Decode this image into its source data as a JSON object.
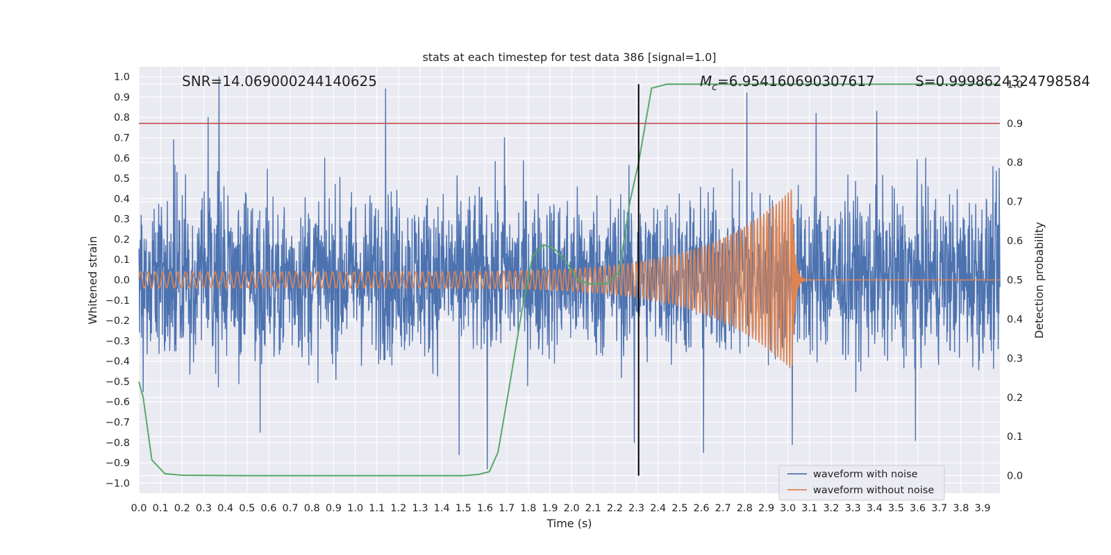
{
  "chart_data": {
    "type": "line",
    "title": "stats at each timestep for test data 386 [signal=1.0]",
    "xlabel": "Time (s)",
    "ylabel": "Whitened strain",
    "ylabel_right": "Detection probability",
    "xlim": [
      0.0,
      3.98
    ],
    "ylim": [
      -1.05,
      1.05
    ],
    "ylim_right": [
      -0.045,
      1.045
    ],
    "x_ticks": [
      "0.0",
      "0.1",
      "0.2",
      "0.3",
      "0.4",
      "0.5",
      "0.6",
      "0.7",
      "0.8",
      "0.9",
      "1.0",
      "1.1",
      "1.2",
      "1.3",
      "1.4",
      "1.5",
      "1.6",
      "1.7",
      "1.8",
      "1.9",
      "2.0",
      "2.1",
      "2.2",
      "2.3",
      "2.4",
      "2.5",
      "2.6",
      "2.7",
      "2.8",
      "2.9",
      "3.0",
      "3.1",
      "3.2",
      "3.3",
      "3.4",
      "3.5",
      "3.6",
      "3.7",
      "3.8",
      "3.9"
    ],
    "y_ticks": [
      "1.0",
      "0.9",
      "0.8",
      "0.7",
      "0.6",
      "0.5",
      "0.4",
      "0.3",
      "0.2",
      "0.1",
      "0.0",
      "−0.1",
      "−0.2",
      "−0.3",
      "−0.4",
      "−0.5",
      "−0.6",
      "−0.7",
      "−0.8",
      "−0.9",
      "−1.0"
    ],
    "y_ticks_right": [
      "1.0",
      "0.9",
      "0.8",
      "0.7",
      "0.6",
      "0.5",
      "0.4",
      "0.3",
      "0.2",
      "0.1",
      "0.0"
    ],
    "annotations": {
      "snr": "SNR=14.069000244140625",
      "mc_symbol": "M",
      "mc_subscript": "c",
      "mc_value": "=6.954160690307617",
      "s": "S=0.9998624324798584"
    },
    "threshold": {
      "value": 0.9,
      "axis": "right",
      "color": "#c44e52"
    },
    "marker_time": {
      "x": 2.31,
      "color": "#000000"
    },
    "legend": {
      "placement": "lower-right"
    },
    "grid": true,
    "series": [
      {
        "name": "waveform with noise",
        "axis": "left",
        "color": "#4c72b0",
        "noise": {
          "typical_min": -0.55,
          "typical_max": 0.6,
          "peak_max": 1.0,
          "peak_min": -0.93
        },
        "spikes": [
          {
            "x": 0.37,
            "y": 1.0
          },
          {
            "x": 0.32,
            "y": 0.8
          },
          {
            "x": 1.14,
            "y": 0.94
          },
          {
            "x": 2.81,
            "y": 0.92
          },
          {
            "x": 3.13,
            "y": 0.82
          },
          {
            "x": 3.41,
            "y": 0.83
          },
          {
            "x": 0.16,
            "y": 0.69
          },
          {
            "x": 1.69,
            "y": 0.7
          },
          {
            "x": 1.61,
            "y": -0.93
          },
          {
            "x": 1.48,
            "y": -0.86
          },
          {
            "x": 2.29,
            "y": -0.8
          },
          {
            "x": 2.61,
            "y": -0.85
          },
          {
            "x": 3.02,
            "y": -0.81
          },
          {
            "x": 3.59,
            "y": -0.79
          },
          {
            "x": 0.56,
            "y": -0.75
          },
          {
            "x": 0.02,
            "y": -0.55
          }
        ]
      },
      {
        "name": "waveform without noise",
        "axis": "left",
        "color": "#dd8452",
        "chirp": {
          "f0_hz": 29,
          "f1_hz": 74,
          "amp0": 0.04,
          "amp_peak": 0.45,
          "merger_x": 3.02,
          "start_x": 0.0
        }
      },
      {
        "name": "detection probability",
        "axis": "right",
        "color": "#55a868",
        "x": [
          0.0,
          0.02,
          0.06,
          0.12,
          0.2,
          0.5,
          1.0,
          1.5,
          1.57,
          1.62,
          1.66,
          1.71,
          1.77,
          1.82,
          1.87,
          1.92,
          1.97,
          2.03,
          2.08,
          2.12,
          2.16,
          2.22,
          2.27,
          2.31,
          2.37,
          2.44,
          3.98
        ],
        "y": [
          0.24,
          0.2,
          0.04,
          0.005,
          0.001,
          0.0,
          0.0,
          0.0,
          0.003,
          0.01,
          0.06,
          0.22,
          0.42,
          0.56,
          0.59,
          0.58,
          0.55,
          0.5,
          0.49,
          0.49,
          0.49,
          0.52,
          0.7,
          0.8,
          0.99,
          1.0,
          1.0
        ]
      }
    ]
  }
}
